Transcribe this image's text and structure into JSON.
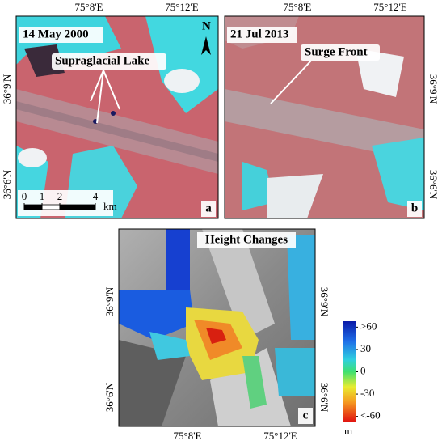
{
  "panels": [
    {
      "letter": "a",
      "date": "14 May 2000",
      "annotation": "Supraglacial Lake",
      "north": "N",
      "scale_bar": {
        "ticks": [
          0,
          1,
          2,
          4
        ],
        "unit": "km"
      },
      "top_labels": [
        "75°8'E",
        "75°12'E"
      ],
      "left_labels": [
        "36°9'N",
        "36°6'N"
      ]
    },
    {
      "letter": "b",
      "date": "21 Jul 2013",
      "annotation": "Surge Front",
      "top_labels": [
        "75°8'E",
        "75°12'E"
      ],
      "right_labels": [
        "36°9'N",
        "36°6'N"
      ]
    },
    {
      "letter": "c",
      "title": "Height Changes",
      "bottom_labels": [
        "75°8'E",
        "75°12'E"
      ],
      "left_labels": [
        "36°9'N",
        "36°6'N"
      ],
      "right_labels": [
        "36°9'N",
        "36°6'N"
      ],
      "legend": {
        "unit": "m",
        "lim": [
          -68,
          68
        ],
        "ticks": [
          {
            "value": 60,
            "label": ">60"
          },
          30,
          0,
          -30,
          {
            "value": -60,
            "label": "<-60"
          }
        ]
      }
    }
  ]
}
